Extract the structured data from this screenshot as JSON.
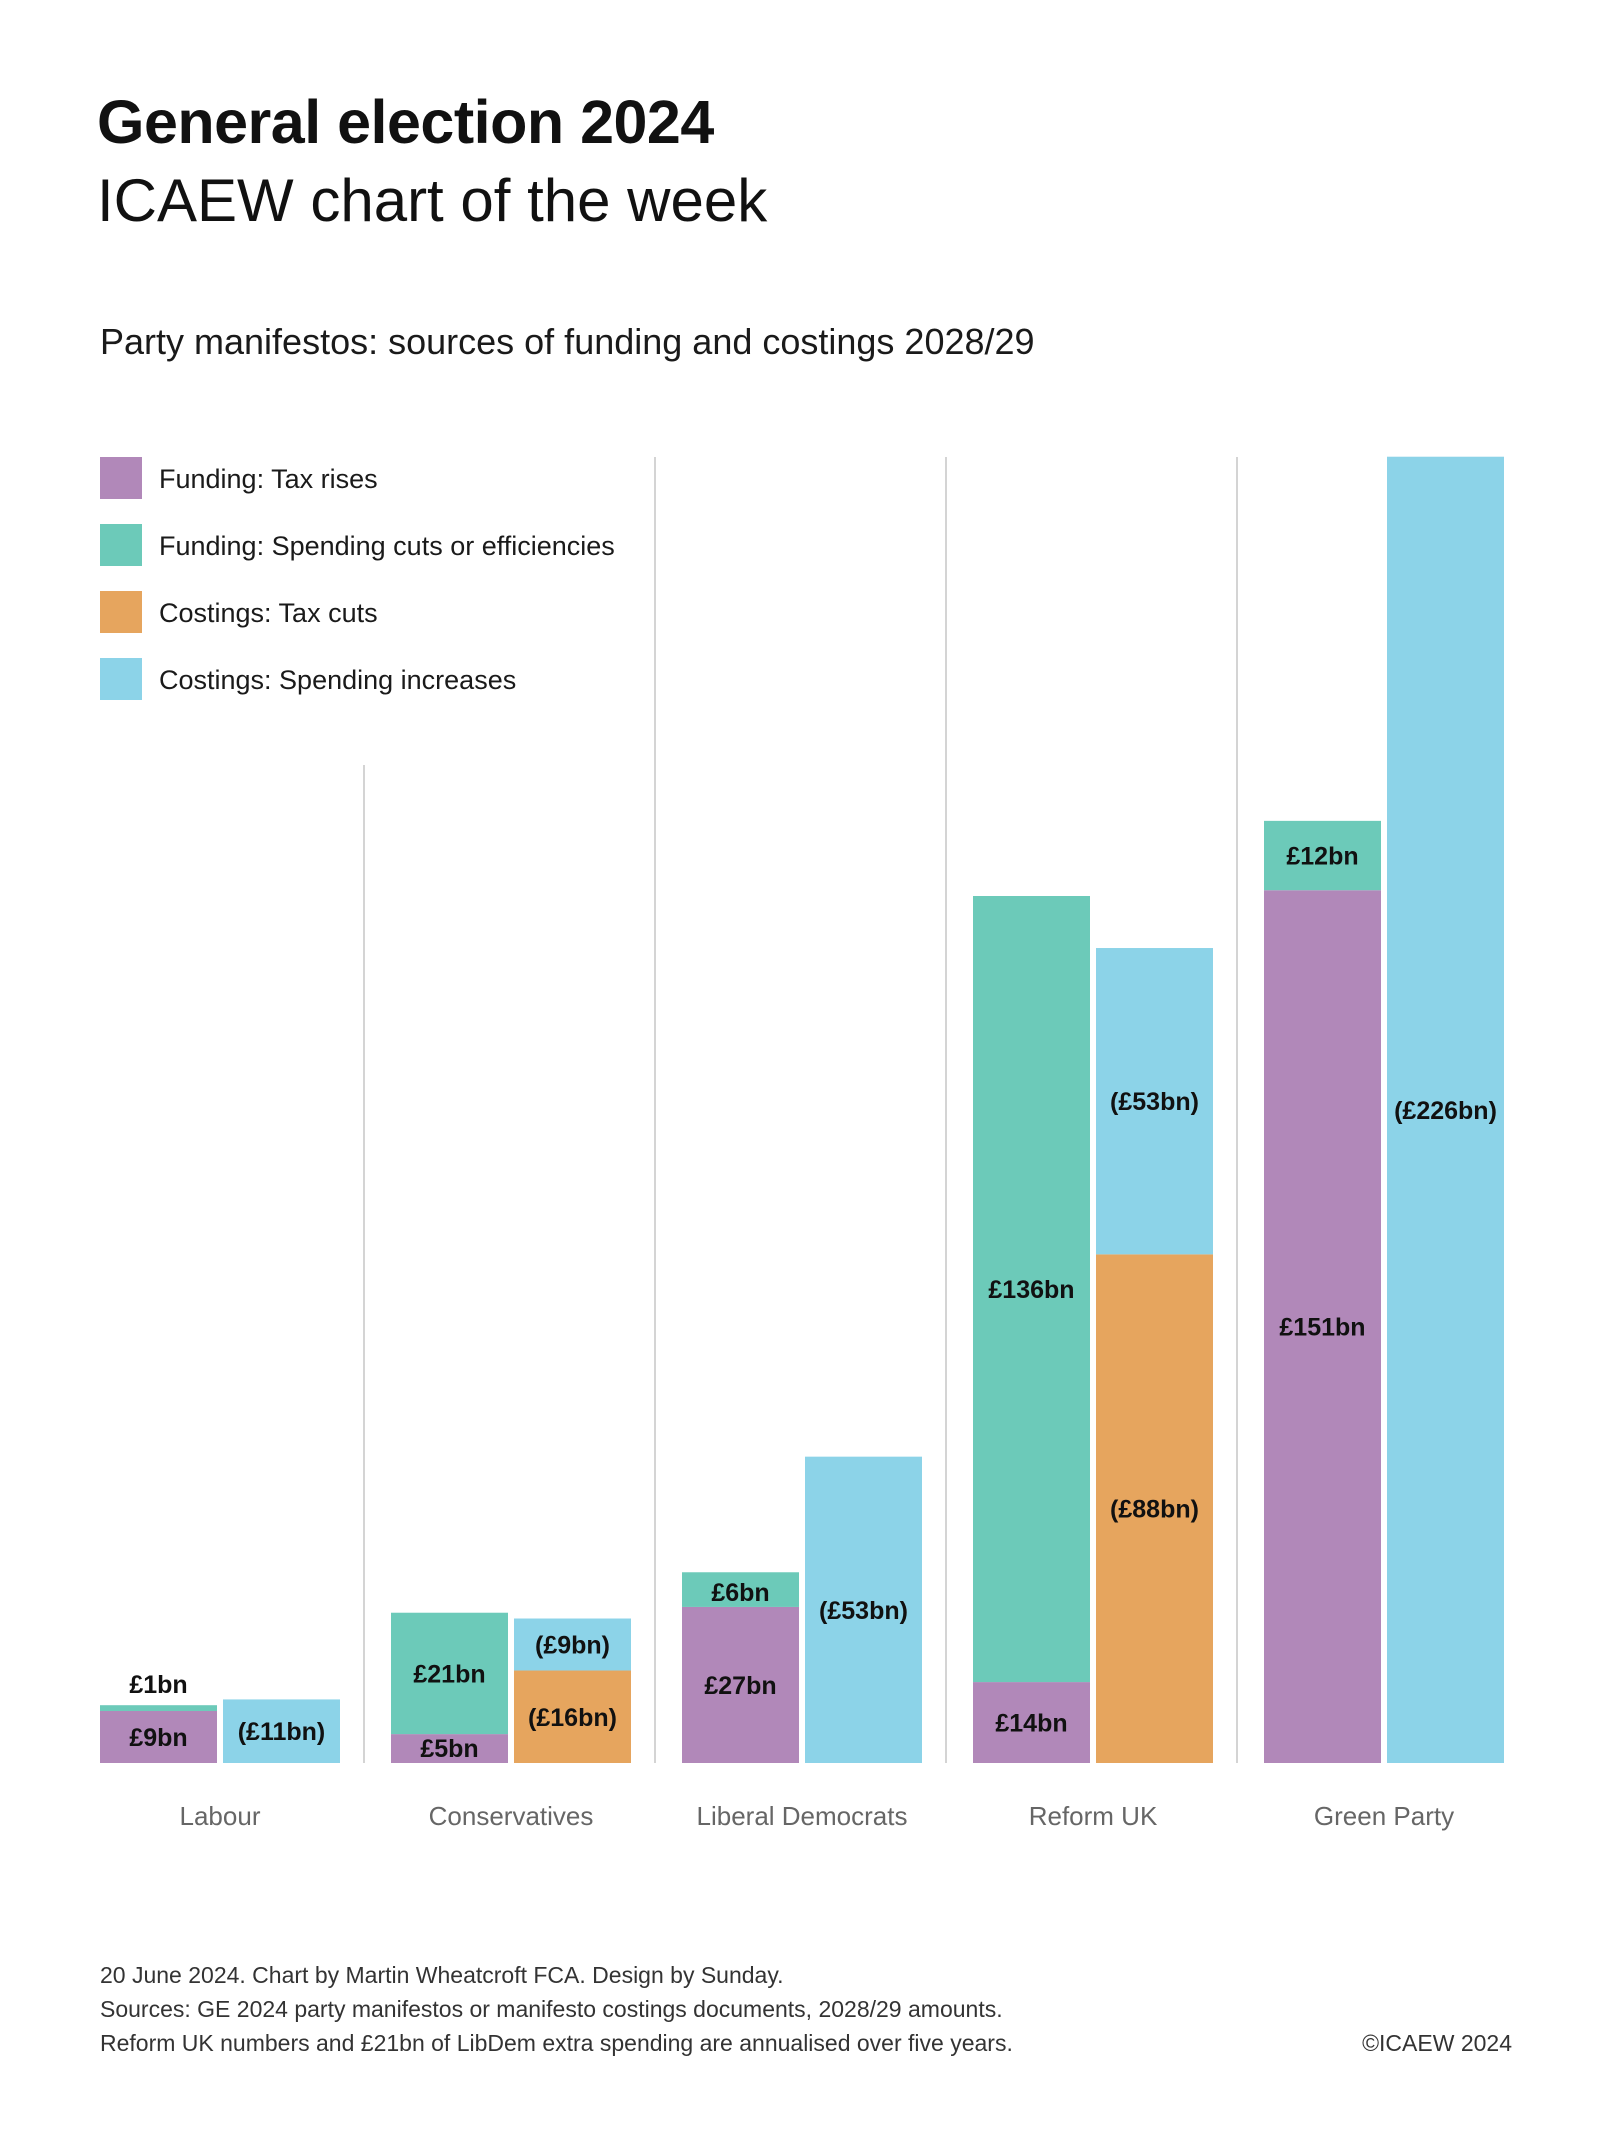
{
  "header": {
    "title": "General election 2024",
    "subtitle": "ICAEW chart of the week"
  },
  "footer": {
    "lines": [
      "20 June 2024.   Chart by Martin Wheatcroft FCA. Design by Sunday.",
      "Sources: GE 2024 party manifestos or manifesto costings documents, 2028/29 amounts.",
      "Reform UK numbers and £21bn of LibDem extra spending are annualised over five years."
    ],
    "copyright": "©ICAEW 2024"
  },
  "colors": {
    "tax_rises": "#b188b9",
    "spending_cuts": "#6ccab9",
    "tax_cuts": "#e6a55e",
    "spending_increases": "#8cd3e8",
    "separator": "#d4d4d4",
    "axis_label": "#666666"
  },
  "chart_data": {
    "type": "bar",
    "stacked": true,
    "title": "Party manifestos: sources of funding and costings 2028/29",
    "xlabel": "",
    "ylabel": "",
    "unit": "£bn",
    "categories": [
      "Labour",
      "Conservatives",
      "Liberal Democrats",
      "Reform UK",
      "Green Party"
    ],
    "legend_position": "top-left",
    "grid": false,
    "ylim": [
      0,
      226
    ],
    "legend": [
      {
        "key": "tax_rises",
        "label": "Funding: Tax rises"
      },
      {
        "key": "spending_cuts",
        "label": "Funding: Spending cuts or efficiencies"
      },
      {
        "key": "tax_cuts",
        "label": "Costings: Tax cuts"
      },
      {
        "key": "spending_increases",
        "label": "Costings: Spending increases"
      }
    ],
    "groups": [
      {
        "party": "Labour",
        "funding": [
          {
            "key": "tax_rises",
            "value": 9,
            "label": "£9bn"
          },
          {
            "key": "spending_cuts",
            "value": 1,
            "label": "£1bn",
            "label_outside": true
          }
        ],
        "costings": [
          {
            "key": "spending_increases",
            "value": 11,
            "label": "(£11bn)"
          }
        ]
      },
      {
        "party": "Conservatives",
        "funding": [
          {
            "key": "tax_rises",
            "value": 5,
            "label": "£5bn"
          },
          {
            "key": "spending_cuts",
            "value": 21,
            "label": "£21bn"
          }
        ],
        "costings": [
          {
            "key": "tax_cuts",
            "value": 16,
            "label": "(£16bn)"
          },
          {
            "key": "spending_increases",
            "value": 9,
            "label": "(£9bn)"
          }
        ]
      },
      {
        "party": "Liberal Democrats",
        "funding": [
          {
            "key": "tax_rises",
            "value": 27,
            "label": "£27bn"
          },
          {
            "key": "spending_cuts",
            "value": 6,
            "label": "£6bn"
          }
        ],
        "costings": [
          {
            "key": "spending_increases",
            "value": 53,
            "label": "(£53bn)"
          }
        ]
      },
      {
        "party": "Reform UK",
        "funding": [
          {
            "key": "tax_rises",
            "value": 14,
            "label": "£14bn"
          },
          {
            "key": "spending_cuts",
            "value": 136,
            "label": "£136bn"
          }
        ],
        "costings": [
          {
            "key": "tax_cuts",
            "value": 88,
            "label": "(£88bn)"
          },
          {
            "key": "spending_increases",
            "value": 53,
            "label": "(£53bn)"
          }
        ]
      },
      {
        "party": "Green Party",
        "funding": [
          {
            "key": "tax_rises",
            "value": 151,
            "label": "£151bn"
          },
          {
            "key": "spending_cuts",
            "value": 12,
            "label": "£12bn"
          }
        ],
        "costings": [
          {
            "key": "spending_increases",
            "value": 226,
            "label": "(£226bn)"
          }
        ]
      }
    ]
  }
}
